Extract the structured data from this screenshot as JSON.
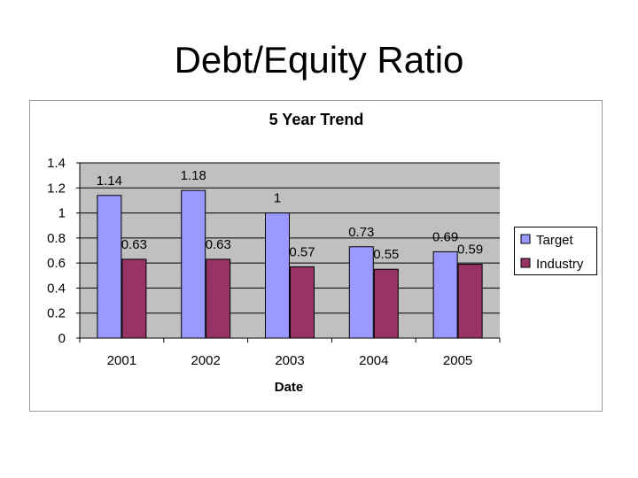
{
  "slide": {
    "title": "Debt/Equity Ratio"
  },
  "chart_data": {
    "type": "bar",
    "title": "5 Year Trend",
    "xlabel": "Date",
    "ylabel": "",
    "categories": [
      "2001",
      "2002",
      "2003",
      "2004",
      "2005"
    ],
    "series": [
      {
        "name": "Target",
        "values": [
          1.14,
          1.18,
          1,
          0.73,
          0.69
        ],
        "labels": [
          "1.14",
          "1.18",
          "1",
          "0.73",
          "0.69"
        ],
        "color": "#9999ff"
      },
      {
        "name": "Industry",
        "values": [
          0.63,
          0.63,
          0.57,
          0.55,
          0.59
        ],
        "labels": [
          "0.63",
          "0.63",
          "0.57",
          "0.55",
          "0.59"
        ],
        "color": "#993366"
      }
    ],
    "ylim": [
      0,
      1.4
    ],
    "yticks": [
      "0",
      "0.2",
      "0.4",
      "0.6",
      "0.8",
      "1",
      "1.2",
      "1.4"
    ],
    "ytick_values": [
      0,
      0.2,
      0.4,
      0.6,
      0.8,
      1,
      1.2,
      1.4
    ],
    "grid": true,
    "legend_position": "right",
    "colors": {
      "plot_background": "#c0c0c0",
      "chart_background": "#ffffff",
      "gridline": "#000000",
      "bar_outline": "#000000"
    }
  }
}
